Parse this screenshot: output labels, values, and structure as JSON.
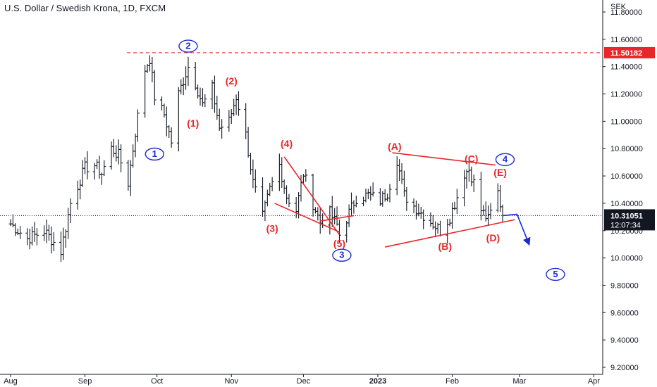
{
  "title": "U.S. Dollar / Swedish Krona, 1D, FXCM",
  "colors": {
    "bars": "#131722",
    "wave_red": "#e8272b",
    "wave_blue": "#1a2bd6",
    "last_price_bg": "#131722",
    "resistance_bg": "#e8272b"
  },
  "chart_data": {
    "type": "ohlc",
    "symbol": "U.S. Dollar / Swedish Krona",
    "interval": "1D",
    "source": "FXCM",
    "y_unit": "SEK",
    "ylim": [
      9.2,
      11.8
    ],
    "y_ticks": [
      "11.80000",
      "11.60000",
      "11.40000",
      "11.20000",
      "11.00000",
      "10.80000",
      "10.60000",
      "10.40000",
      "10.20000",
      "10.00000",
      "9.80000",
      "9.60000",
      "9.40000",
      "9.20000"
    ],
    "x_ticks": [
      "Aug",
      "Sep",
      "Oct",
      "Nov",
      "Dec",
      "2023",
      "Feb",
      "Mar",
      "Apr"
    ],
    "x_tick_dates": [
      "2022-08-01",
      "2022-09-01",
      "2022-10-01",
      "2022-11-01",
      "2022-12-01",
      "2023-01-01",
      "2023-02-01",
      "2023-03-01",
      "2023-04-01"
    ],
    "resistance_level": {
      "price": 11.50182,
      "label": "11.50182",
      "style": "dashed"
    },
    "last_price": {
      "label": "10.31051",
      "countdown": "12:07:34",
      "style": "dotted"
    },
    "anchor_prices": [
      [
        "2022-08-01",
        10.25
      ],
      [
        "2022-08-08",
        10.14
      ],
      [
        "2022-08-15",
        10.2
      ],
      [
        "2022-08-22",
        10.05
      ],
      [
        "2022-08-26",
        10.4
      ],
      [
        "2022-09-01",
        10.66
      ],
      [
        "2022-09-05",
        10.68
      ],
      [
        "2022-09-08",
        10.62
      ],
      [
        "2022-09-12",
        10.8
      ],
      [
        "2022-09-15",
        10.75
      ],
      [
        "2022-09-19",
        10.55
      ],
      [
        "2022-09-22",
        10.92
      ],
      [
        "2022-09-26",
        11.38
      ],
      [
        "2022-09-28",
        11.46
      ],
      [
        "2022-09-30",
        11.18
      ],
      [
        "2022-10-04",
        11.05
      ],
      [
        "2022-10-07",
        10.85
      ],
      [
        "2022-10-10",
        11.2
      ],
      [
        "2022-10-14",
        11.4
      ],
      [
        "2022-10-17",
        11.28
      ],
      [
        "2022-10-20",
        11.12
      ],
      [
        "2022-10-24",
        11.24
      ],
      [
        "2022-10-27",
        10.95
      ],
      [
        "2022-10-31",
        11.0
      ],
      [
        "2022-11-03",
        11.18
      ],
      [
        "2022-11-07",
        10.9
      ],
      [
        "2022-11-10",
        10.55
      ],
      [
        "2022-11-14",
        10.3
      ],
      [
        "2022-11-17",
        10.5
      ],
      [
        "2022-11-21",
        10.68
      ],
      [
        "2022-11-24",
        10.45
      ],
      [
        "2022-11-28",
        10.35
      ],
      [
        "2022-12-01",
        10.62
      ],
      [
        "2022-12-05",
        10.4
      ],
      [
        "2022-12-08",
        10.26
      ],
      [
        "2022-12-12",
        10.33
      ],
      [
        "2022-12-15",
        10.24
      ],
      [
        "2022-12-16",
        10.17
      ],
      [
        "2022-12-20",
        10.33
      ],
      [
        "2022-12-23",
        10.44
      ],
      [
        "2022-12-28",
        10.46
      ],
      [
        "2023-01-02",
        10.42
      ],
      [
        "2023-01-05",
        10.48
      ],
      [
        "2023-01-09",
        10.72
      ],
      [
        "2023-01-12",
        10.46
      ],
      [
        "2023-01-16",
        10.38
      ],
      [
        "2023-01-19",
        10.33
      ],
      [
        "2023-01-24",
        10.25
      ],
      [
        "2023-01-27",
        10.2
      ],
      [
        "2023-01-31",
        10.3
      ],
      [
        "2023-02-03",
        10.45
      ],
      [
        "2023-02-06",
        10.62
      ],
      [
        "2023-02-08",
        10.65
      ],
      [
        "2023-02-10",
        10.55
      ],
      [
        "2023-02-13",
        10.35
      ],
      [
        "2023-02-16",
        10.28
      ],
      [
        "2023-02-20",
        10.48
      ],
      [
        "2023-02-22",
        10.31
      ]
    ],
    "annotations": [
      {
        "label": "(1)",
        "color": "red",
        "date": "2022-10-16",
        "price": 10.98
      },
      {
        "label": "(2)",
        "color": "red",
        "date": "2022-11-01",
        "price": 11.29
      },
      {
        "label": "(3)",
        "color": "red",
        "date": "2022-11-18",
        "price": 10.21
      },
      {
        "label": "(4)",
        "color": "red",
        "date": "2022-11-24",
        "price": 10.83
      },
      {
        "label": "(5)",
        "color": "red",
        "date": "2022-12-16",
        "price": 10.1
      },
      {
        "label": "(A)",
        "color": "red",
        "date": "2023-01-08",
        "price": 10.81
      },
      {
        "label": "(B)",
        "color": "red",
        "date": "2023-01-29",
        "price": 10.08
      },
      {
        "label": "(C)",
        "color": "red",
        "date": "2023-02-09",
        "price": 10.72
      },
      {
        "label": "(D)",
        "color": "red",
        "date": "2023-02-18",
        "price": 10.14
      },
      {
        "label": "(E)",
        "color": "red",
        "date": "2023-02-21",
        "price": 10.62
      },
      {
        "label": "1",
        "color": "blue",
        "date": "2022-09-30",
        "price": 10.76
      },
      {
        "label": "2",
        "color": "blue",
        "date": "2022-10-14",
        "price": 11.55
      },
      {
        "label": "3",
        "color": "blue",
        "date": "2022-12-17",
        "price": 10.02
      },
      {
        "label": "4",
        "color": "blue",
        "date": "2023-02-23",
        "price": 10.72
      },
      {
        "label": "5",
        "color": "blue",
        "date": "2023-03-16",
        "price": 9.88
      }
    ],
    "lines": [
      {
        "color": "red",
        "from": [
          "2022-12-08",
          10.27
        ],
        "to": [
          "2022-12-22",
          10.31
        ]
      },
      {
        "color": "red",
        "from": [
          "2022-11-19",
          10.4
        ],
        "to": [
          "2022-12-16",
          10.19
        ]
      },
      {
        "color": "red",
        "from": [
          "2022-11-23",
          10.74
        ],
        "to": [
          "2022-12-16",
          10.17
        ]
      },
      {
        "color": "red",
        "from": [
          "2023-01-07",
          10.77
        ],
        "to": [
          "2023-02-19",
          10.68
        ]
      },
      {
        "color": "red",
        "from": [
          "2023-01-04",
          10.08
        ],
        "to": [
          "2023-02-27",
          10.28
        ]
      },
      {
        "color": "blue",
        "from": [
          "2023-02-22",
          10.31
        ],
        "to": [
          "2023-02-28",
          10.32
        ]
      },
      {
        "color": "blue",
        "from": [
          "2023-02-28",
          10.32
        ],
        "to": [
          "2023-03-05",
          10.1
        ],
        "arrow": true
      }
    ]
  }
}
